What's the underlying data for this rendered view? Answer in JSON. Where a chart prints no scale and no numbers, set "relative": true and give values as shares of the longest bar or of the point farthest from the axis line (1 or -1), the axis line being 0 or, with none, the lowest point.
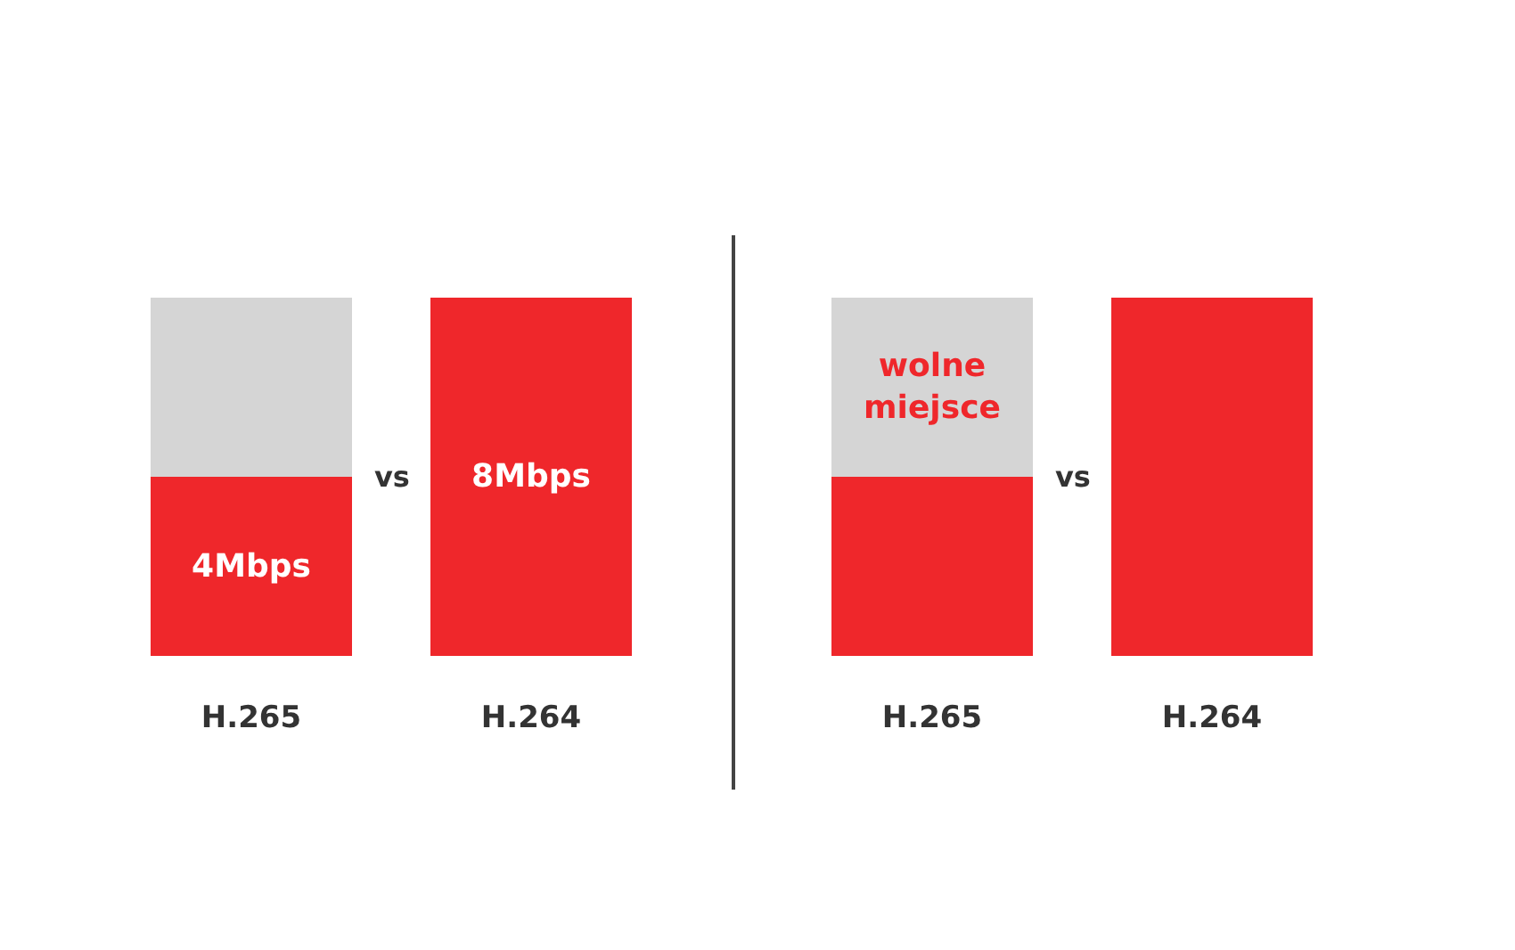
{
  "chart_data": [
    {
      "type": "bar",
      "stacked": true,
      "categories": [
        "H.265",
        "H.264"
      ],
      "series": [
        {
          "color": "#ef272b",
          "values": [
            4,
            8
          ],
          "value_labels": [
            "4Mbps",
            "8Mbps"
          ]
        },
        {
          "color": "#d5d5d5",
          "values": [
            4,
            null
          ]
        }
      ],
      "annotations": [
        "vs"
      ]
    },
    {
      "type": "bar",
      "stacked": true,
      "relative": true,
      "categories": [
        "H.265",
        "H.264"
      ],
      "series": [
        {
          "color": "#ef272b",
          "values": [
            0.5,
            1
          ]
        },
        {
          "name": "wolne miejsce",
          "color": "#d5d5d5",
          "values": [
            0.5,
            null
          ]
        }
      ],
      "annotations": [
        "vs"
      ]
    }
  ]
}
